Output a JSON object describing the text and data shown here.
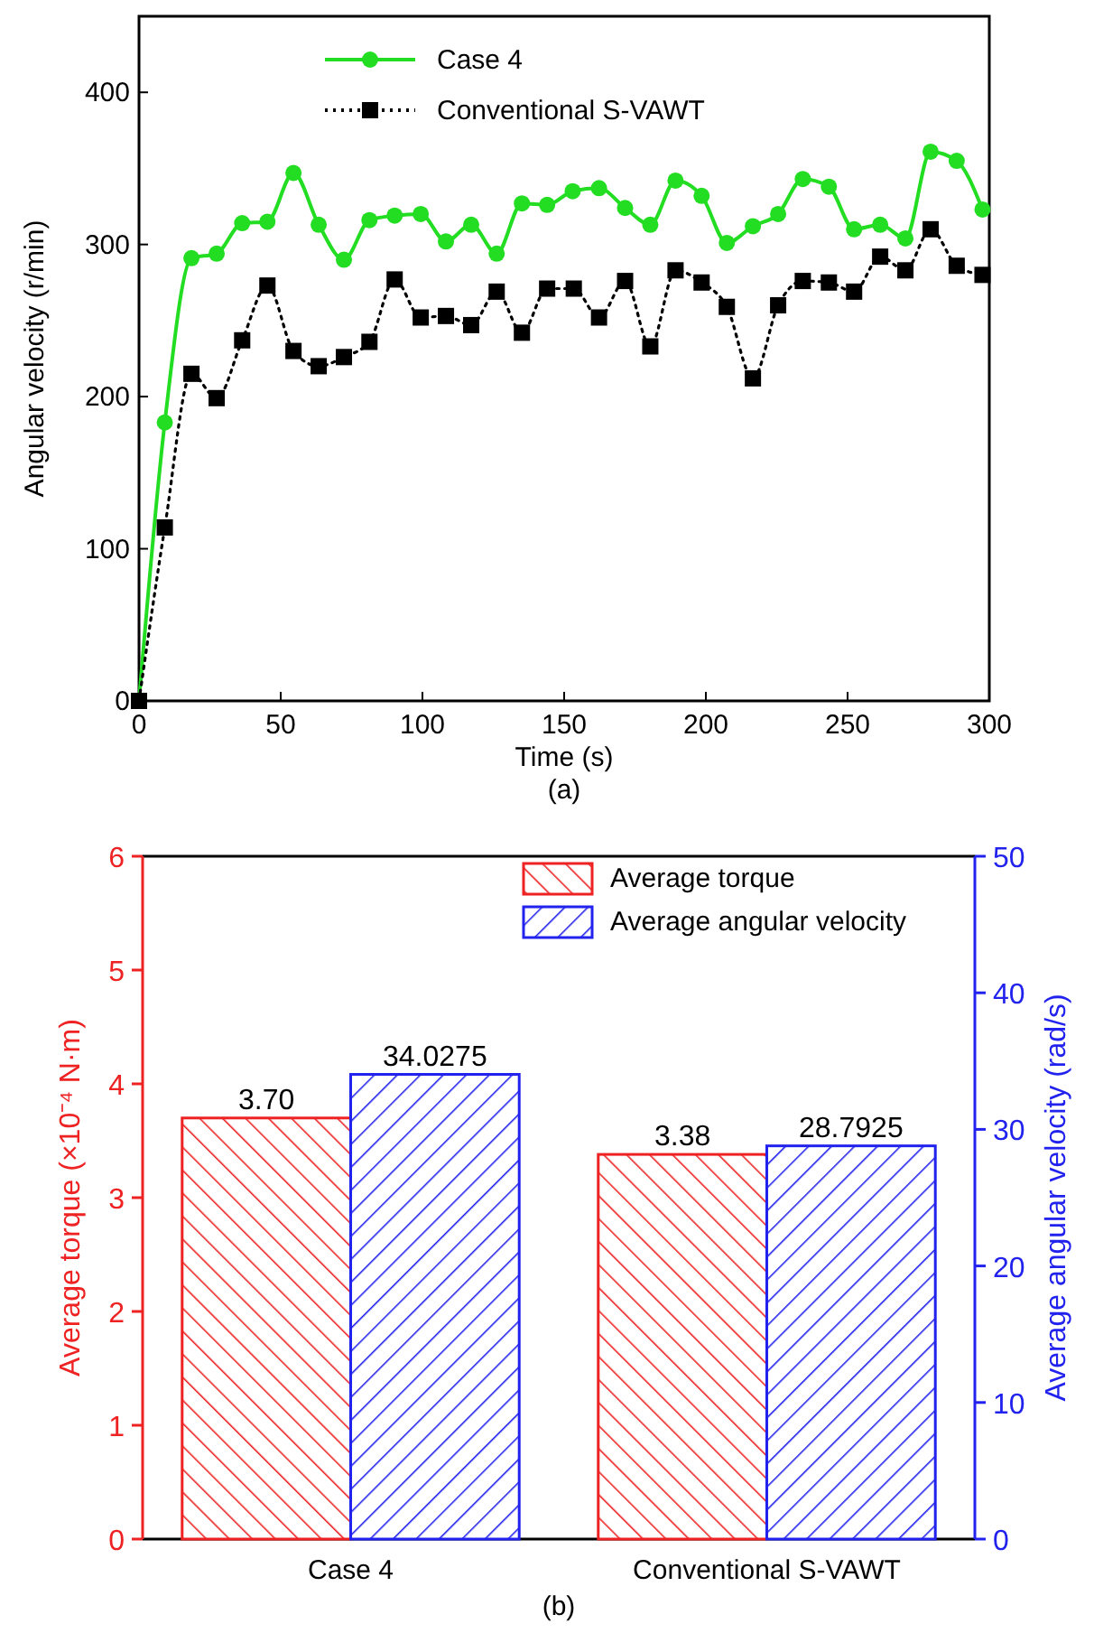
{
  "chart_data": [
    {
      "type": "line",
      "xlabel": "Time (s)",
      "ylabel": "Angular velocity (r/min)",
      "xlim": [
        0,
        300
      ],
      "ylim": [
        0,
        450
      ],
      "xticks": [
        0,
        50,
        100,
        150,
        200,
        250,
        300
      ],
      "yticks": [
        0,
        100,
        200,
        300,
        400
      ],
      "grid": false,
      "legend": "top",
      "annotations": [
        "(a)"
      ],
      "series": [
        {
          "name": "Case 4",
          "color": "#22dd22",
          "marker": "circle",
          "line_style": "solid",
          "x": [
            0,
            9.1,
            18.5,
            27.4,
            36.4,
            45.3,
            54.5,
            63.4,
            72.3,
            81.3,
            90.2,
            99.4,
            108.3,
            117.2,
            126.2,
            135.1,
            144,
            153,
            162.3,
            171.5,
            180.4,
            189.3,
            198.5,
            207.4,
            216.6,
            225.5,
            234.2,
            243.4,
            252.3,
            261.5,
            270.4,
            279.3,
            288.5,
            297.6
          ],
          "values": [
            0,
            183,
            291,
            294,
            314,
            315,
            347,
            313,
            290,
            316,
            319,
            320,
            302,
            313,
            294,
            327,
            326,
            335,
            337,
            324,
            313,
            342,
            332,
            301,
            312,
            320,
            343,
            338,
            310,
            313,
            304,
            361,
            355,
            323
          ]
        },
        {
          "name": "Conventional S-VAWT",
          "color": "#000000",
          "marker": "square",
          "line_style": "dotted",
          "x": [
            0,
            9.1,
            18.5,
            27.4,
            36.4,
            45.3,
            54.5,
            63.4,
            72.3,
            81.3,
            90.2,
            99.4,
            108.3,
            117.2,
            126.2,
            135.1,
            144,
            153.4,
            162.3,
            171.5,
            180.4,
            189.3,
            198.5,
            207.4,
            216.6,
            225.5,
            234.2,
            243.4,
            252.3,
            261.5,
            270.4,
            279.3,
            288.5,
            297.6
          ],
          "values": [
            0,
            114,
            215,
            199,
            237,
            273,
            230,
            220,
            226,
            236,
            277,
            252,
            253,
            247,
            269,
            242,
            271,
            271,
            252,
            276,
            233,
            283,
            275,
            259,
            212,
            260,
            276,
            275,
            269,
            292,
            283,
            310,
            286,
            280
          ]
        }
      ]
    },
    {
      "type": "bar",
      "categories": [
        "Case 4",
        "Conventional S-VAWT"
      ],
      "ylabel": "Average torque (×10⁻⁴ N·m)",
      "y2label": "Average angular velocity (rad/s)",
      "ylim": [
        0,
        6
      ],
      "yticks": [
        0,
        1,
        2,
        3,
        4,
        5,
        6
      ],
      "y2lim": [
        0,
        50
      ],
      "y2ticks": [
        0,
        10,
        20,
        30,
        40,
        50
      ],
      "grid": false,
      "legend": "top right",
      "annotations": [
        "(b)"
      ],
      "series": [
        {
          "name": "Average torque",
          "color": "#ee2222",
          "values": [
            3.7,
            3.38
          ],
          "value_labels": [
            "3.70",
            "3.38"
          ]
        },
        {
          "name": "Average angular velocity",
          "color": "#2222ee",
          "axis": "y2",
          "values": [
            34.0275,
            28.7925
          ],
          "value_labels": [
            "34.0275",
            "28.7925"
          ]
        }
      ]
    }
  ]
}
